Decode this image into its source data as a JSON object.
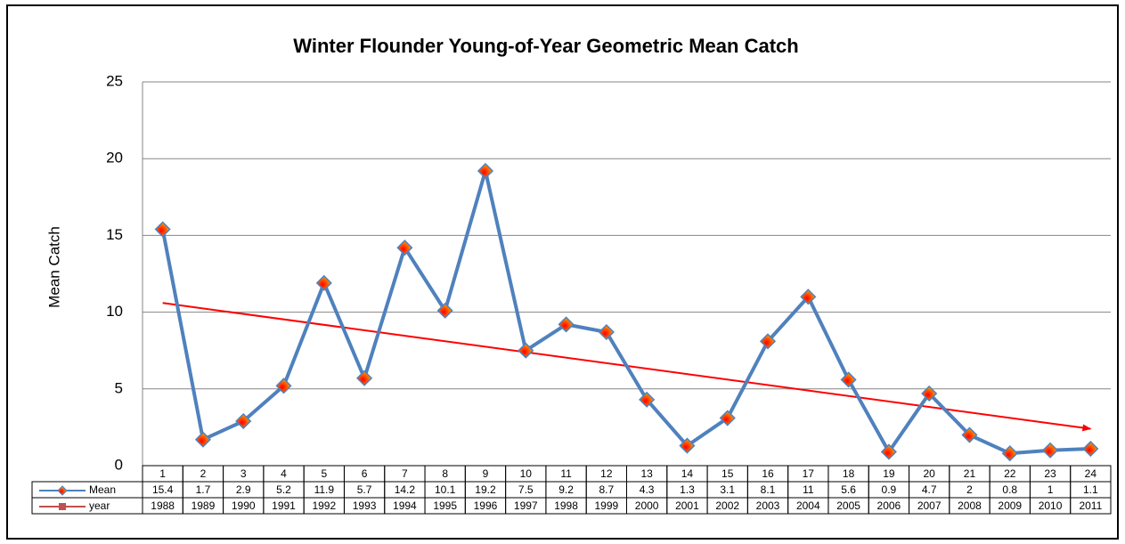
{
  "chart_data": {
    "type": "line",
    "title": "Winter Flounder Young-of-Year Geometric Mean Catch",
    "ylabel": "Mean Catch",
    "categories": [
      "1",
      "2",
      "3",
      "4",
      "5",
      "6",
      "7",
      "8",
      "9",
      "10",
      "11",
      "12",
      "13",
      "14",
      "15",
      "16",
      "17",
      "18",
      "19",
      "20",
      "21",
      "22",
      "23",
      "24"
    ],
    "series": [
      {
        "name": "Mean",
        "color": "#4f81bd",
        "values": [
          15.4,
          1.7,
          2.9,
          5.2,
          11.9,
          5.7,
          14.2,
          10.1,
          19.2,
          7.5,
          9.2,
          8.7,
          4.3,
          1.3,
          3.1,
          8.1,
          11,
          5.6,
          0.9,
          4.7,
          2,
          0.8,
          1,
          1.1
        ]
      },
      {
        "name": "year",
        "color": "#c0504d",
        "values": [
          1988,
          1989,
          1990,
          1991,
          1992,
          1993,
          1994,
          1995,
          1996,
          1997,
          1998,
          1999,
          2000,
          2001,
          2002,
          2003,
          2004,
          2005,
          2006,
          2007,
          2008,
          2009,
          2010,
          2011
        ]
      }
    ],
    "trendline": {
      "color": "#ff0000",
      "start": 10.6,
      "end": 2.4
    },
    "ylim": [
      0,
      25
    ],
    "yticks": [
      0,
      5,
      10,
      15,
      20,
      25
    ],
    "grid": true
  }
}
